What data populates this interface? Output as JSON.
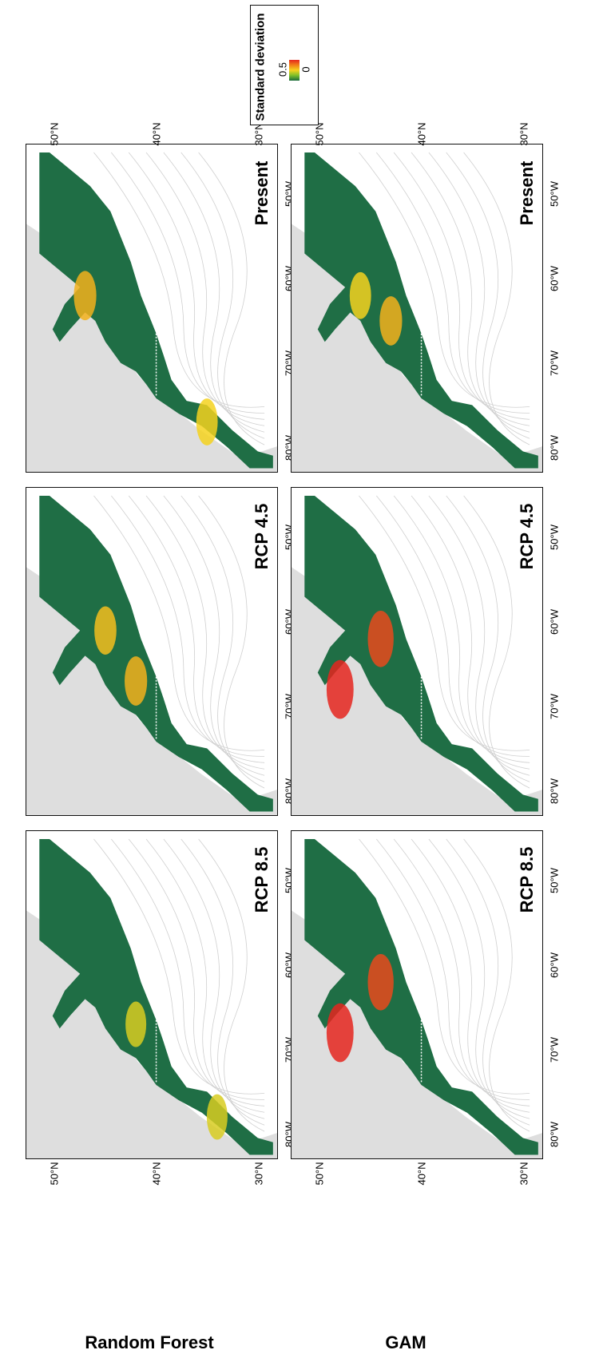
{
  "figure": {
    "models": [
      "Random Forest",
      "GAM"
    ],
    "scenarios": [
      "Present",
      "RCP 4.5",
      "RCP 8.5"
    ]
  },
  "chart_data": {
    "type": "heatmap",
    "title": "",
    "variable": "Standard deviation",
    "colorbar": {
      "min": 0,
      "max": 0.5,
      "ticks": [
        "0.5",
        "0"
      ],
      "colors": [
        "#1a6b3c",
        "#7cbf2a",
        "#f5d21e",
        "#f07f18",
        "#e5261f"
      ]
    },
    "axes": {
      "longitude_ticks": [
        "80°W",
        "70°W",
        "60°W",
        "50°W"
      ],
      "latitude_ticks": [
        "50°N",
        "40°N",
        "30°N"
      ]
    },
    "colors": {
      "background_land": "#dedede",
      "ocean_range": "#1f6e45",
      "contour": "#cfcfcf"
    },
    "panels": [
      {
        "model": "Random Forest",
        "scenario": "Present",
        "max_sd": 0.3,
        "hotspots": [
          {
            "lon": -62,
            "lat": 47,
            "sd": 0.3
          },
          {
            "lon": -77,
            "lat": 35,
            "sd": 0.25
          }
        ]
      },
      {
        "model": "Random Forest",
        "scenario": "RCP 4.5",
        "max_sd": 0.3,
        "hotspots": [
          {
            "lon": -67,
            "lat": 42,
            "sd": 0.3
          },
          {
            "lon": -61,
            "lat": 45,
            "sd": 0.28
          }
        ]
      },
      {
        "model": "Random Forest",
        "scenario": "RCP 8.5",
        "max_sd": 0.25,
        "hotspots": [
          {
            "lon": -67,
            "lat": 42,
            "sd": 0.22
          },
          {
            "lon": -78,
            "lat": 34,
            "sd": 0.22
          }
        ]
      },
      {
        "model": "GAM",
        "scenario": "Present",
        "max_sd": 0.3,
        "hotspots": [
          {
            "lon": -65,
            "lat": 43,
            "sd": 0.3
          },
          {
            "lon": -62,
            "lat": 46,
            "sd": 0.25
          }
        ]
      },
      {
        "model": "GAM",
        "scenario": "RCP 4.5",
        "max_sd": 0.5,
        "hotspots": [
          {
            "lon": -68,
            "lat": 48,
            "sd": 0.5
          },
          {
            "lon": -62,
            "lat": 44,
            "sd": 0.45
          }
        ]
      },
      {
        "model": "GAM",
        "scenario": "RCP 8.5",
        "max_sd": 0.5,
        "hotspots": [
          {
            "lon": -68,
            "lat": 48,
            "sd": 0.5
          },
          {
            "lon": -62,
            "lat": 44,
            "sd": 0.45
          }
        ]
      }
    ]
  }
}
